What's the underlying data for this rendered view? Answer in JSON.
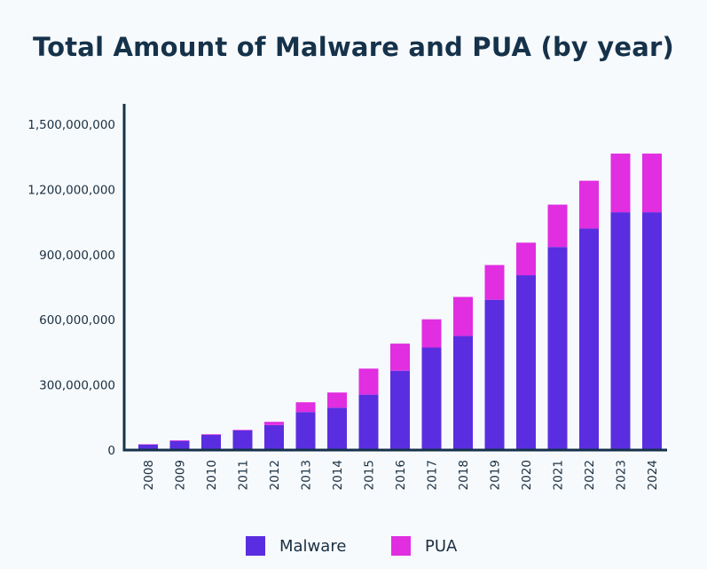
{
  "chart_data": {
    "type": "bar",
    "stacked": true,
    "title": "Total Amount of Malware and PUA (by year)",
    "xlabel": "",
    "ylabel": "",
    "ylim": [
      0,
      1500000000
    ],
    "yticks": [
      0,
      300000000,
      600000000,
      900000000,
      1200000000,
      1500000000
    ],
    "ytick_labels": [
      "0",
      "300,000,000",
      "600,000,000",
      "900,000,000",
      "1,200,000,000",
      "1,500,000,000"
    ],
    "categories": [
      "2008",
      "2009",
      "2010",
      "2011",
      "2012",
      "2013",
      "2014",
      "2015",
      "2016",
      "2017",
      "2018",
      "2019",
      "2020",
      "2021",
      "2022",
      "2023",
      "2024"
    ],
    "series": [
      {
        "name": "Malware",
        "color": "#5a2ee0",
        "values": [
          25000000,
          42000000,
          70000000,
          90000000,
          115000000,
          175000000,
          195000000,
          255000000,
          365000000,
          472000000,
          525000000,
          692000000,
          805000000,
          935000000,
          1020000000,
          1095000000,
          1095000000
        ]
      },
      {
        "name": "PUA",
        "color": "#e02ee0",
        "values": [
          2000000,
          3000000,
          3000000,
          3000000,
          15000000,
          45000000,
          70000000,
          120000000,
          125000000,
          130000000,
          180000000,
          160000000,
          150000000,
          195000000,
          220000000,
          270000000,
          270000000
        ]
      }
    ],
    "legend": {
      "position": "bottom"
    },
    "grid": false
  }
}
